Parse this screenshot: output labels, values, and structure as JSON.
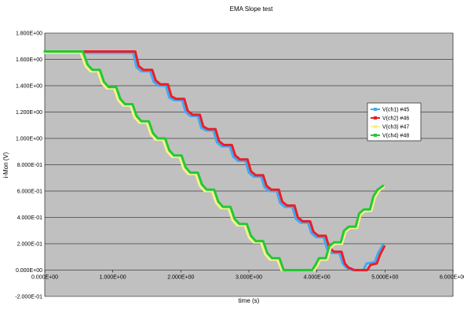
{
  "chart_data": {
    "type": "line",
    "title": "EMA Slope test",
    "xlabel": "time (s)",
    "ylabel": "i-Mon (V)",
    "xlim": [
      0,
      6
    ],
    "ylim": [
      -0.2,
      1.8
    ],
    "x_ticks": [
      {
        "value": 0,
        "label": "0.000E+00"
      },
      {
        "value": 1,
        "label": "1.000E+00"
      },
      {
        "value": 2,
        "label": "2.000E+00"
      },
      {
        "value": 3,
        "label": "3.000E+00"
      },
      {
        "value": 4,
        "label": "4.000E+00"
      },
      {
        "value": 5,
        "label": "5.000E+00"
      },
      {
        "value": 6,
        "label": "6.000E+00"
      }
    ],
    "y_ticks": [
      {
        "value": 1.8,
        "label": "1.800E+00"
      },
      {
        "value": 1.6,
        "label": "1.600E+00"
      },
      {
        "value": 1.4,
        "label": "1.400E+00"
      },
      {
        "value": 1.2,
        "label": "1.200E+00"
      },
      {
        "value": 1.0,
        "label": "1.000E+00"
      },
      {
        "value": 0.8,
        "label": "8.000E-01"
      },
      {
        "value": 0.6,
        "label": "6.000E-01"
      },
      {
        "value": 0.4,
        "label": "4.000E-01"
      },
      {
        "value": 0.2,
        "label": "2.000E-01"
      },
      {
        "value": 0.0,
        "label": "0.000E+00"
      },
      {
        "value": -0.2,
        "label": "-2.000E-01"
      }
    ],
    "grid": "horizontal",
    "legend_position": "right",
    "series": [
      {
        "name": "V(ch1) #45",
        "color": "#3fa9f5",
        "points": [
          [
            0,
            1.65
          ],
          [
            1.3,
            1.65
          ],
          [
            1.35,
            1.54
          ],
          [
            1.42,
            1.51
          ],
          [
            1.55,
            1.51
          ],
          [
            1.6,
            1.43
          ],
          [
            1.67,
            1.4
          ],
          [
            1.78,
            1.4
          ],
          [
            1.83,
            1.31
          ],
          [
            1.9,
            1.29
          ],
          [
            2.02,
            1.29
          ],
          [
            2.07,
            1.2
          ],
          [
            2.14,
            1.17
          ],
          [
            2.25,
            1.17
          ],
          [
            2.3,
            1.08
          ],
          [
            2.37,
            1.06
          ],
          [
            2.48,
            1.06
          ],
          [
            2.53,
            0.97
          ],
          [
            2.6,
            0.94
          ],
          [
            2.72,
            0.94
          ],
          [
            2.77,
            0.86
          ],
          [
            2.84,
            0.83
          ],
          [
            2.95,
            0.83
          ],
          [
            3.0,
            0.74
          ],
          [
            3.07,
            0.71
          ],
          [
            3.18,
            0.71
          ],
          [
            3.23,
            0.63
          ],
          [
            3.3,
            0.6
          ],
          [
            3.41,
            0.6
          ],
          [
            3.46,
            0.51
          ],
          [
            3.53,
            0.48
          ],
          [
            3.64,
            0.48
          ],
          [
            3.69,
            0.39
          ],
          [
            3.76,
            0.36
          ],
          [
            3.87,
            0.36
          ],
          [
            3.92,
            0.28
          ],
          [
            3.99,
            0.25
          ],
          [
            4.1,
            0.25
          ],
          [
            4.15,
            0.16
          ],
          [
            4.22,
            0.13
          ],
          [
            4.33,
            0.13
          ],
          [
            4.38,
            0.05
          ],
          [
            4.43,
            0.02
          ],
          [
            4.52,
            0.0
          ],
          [
            4.68,
            0.0
          ],
          [
            4.73,
            0.05
          ],
          [
            4.85,
            0.06
          ],
          [
            4.9,
            0.13
          ],
          [
            4.97,
            0.19
          ]
        ]
      },
      {
        "name": "V(ch2) #46",
        "color": "#ee1c24",
        "points": [
          [
            0,
            1.66
          ],
          [
            1.33,
            1.66
          ],
          [
            1.38,
            1.55
          ],
          [
            1.45,
            1.52
          ],
          [
            1.58,
            1.52
          ],
          [
            1.63,
            1.44
          ],
          [
            1.7,
            1.41
          ],
          [
            1.81,
            1.41
          ],
          [
            1.86,
            1.32
          ],
          [
            1.93,
            1.3
          ],
          [
            2.05,
            1.3
          ],
          [
            2.1,
            1.21
          ],
          [
            2.17,
            1.18
          ],
          [
            2.28,
            1.18
          ],
          [
            2.33,
            1.09
          ],
          [
            2.4,
            1.07
          ],
          [
            2.51,
            1.07
          ],
          [
            2.56,
            0.98
          ],
          [
            2.63,
            0.95
          ],
          [
            2.75,
            0.95
          ],
          [
            2.8,
            0.87
          ],
          [
            2.87,
            0.84
          ],
          [
            2.98,
            0.84
          ],
          [
            3.03,
            0.75
          ],
          [
            3.1,
            0.72
          ],
          [
            3.21,
            0.72
          ],
          [
            3.26,
            0.64
          ],
          [
            3.33,
            0.61
          ],
          [
            3.44,
            0.61
          ],
          [
            3.49,
            0.52
          ],
          [
            3.56,
            0.49
          ],
          [
            3.67,
            0.49
          ],
          [
            3.72,
            0.4
          ],
          [
            3.79,
            0.37
          ],
          [
            3.9,
            0.37
          ],
          [
            3.95,
            0.29
          ],
          [
            4.02,
            0.26
          ],
          [
            4.13,
            0.26
          ],
          [
            4.18,
            0.17
          ],
          [
            4.25,
            0.14
          ],
          [
            4.36,
            0.14
          ],
          [
            4.41,
            0.05
          ],
          [
            4.46,
            0.02
          ],
          [
            4.55,
            0.0
          ],
          [
            4.74,
            0.0
          ],
          [
            4.79,
            0.04
          ],
          [
            4.88,
            0.05
          ],
          [
            4.93,
            0.12
          ],
          [
            4.99,
            0.18
          ]
        ]
      },
      {
        "name": "V(ch3) #47",
        "color": "#f7f28a",
        "points": [
          [
            0,
            1.65
          ],
          [
            0.53,
            1.65
          ],
          [
            0.6,
            1.55
          ],
          [
            0.67,
            1.51
          ],
          [
            0.78,
            1.51
          ],
          [
            0.84,
            1.42
          ],
          [
            0.91,
            1.38
          ],
          [
            1.02,
            1.38
          ],
          [
            1.08,
            1.29
          ],
          [
            1.15,
            1.25
          ],
          [
            1.26,
            1.25
          ],
          [
            1.32,
            1.16
          ],
          [
            1.39,
            1.12
          ],
          [
            1.5,
            1.12
          ],
          [
            1.56,
            1.03
          ],
          [
            1.63,
            0.99
          ],
          [
            1.74,
            0.99
          ],
          [
            1.8,
            0.9
          ],
          [
            1.87,
            0.86
          ],
          [
            1.98,
            0.86
          ],
          [
            2.04,
            0.77
          ],
          [
            2.11,
            0.73
          ],
          [
            2.22,
            0.73
          ],
          [
            2.28,
            0.64
          ],
          [
            2.35,
            0.6
          ],
          [
            2.46,
            0.6
          ],
          [
            2.52,
            0.51
          ],
          [
            2.59,
            0.47
          ],
          [
            2.7,
            0.47
          ],
          [
            2.76,
            0.38
          ],
          [
            2.83,
            0.34
          ],
          [
            2.94,
            0.34
          ],
          [
            3.0,
            0.25
          ],
          [
            3.07,
            0.21
          ],
          [
            3.18,
            0.21
          ],
          [
            3.24,
            0.12
          ],
          [
            3.31,
            0.08
          ],
          [
            3.42,
            0.08
          ],
          [
            3.48,
            0.0
          ],
          [
            3.96,
            0.0
          ],
          [
            4.0,
            0.03
          ],
          [
            4.05,
            0.08
          ],
          [
            4.15,
            0.08
          ],
          [
            4.2,
            0.17
          ],
          [
            4.27,
            0.2
          ],
          [
            4.37,
            0.2
          ],
          [
            4.42,
            0.29
          ],
          [
            4.49,
            0.32
          ],
          [
            4.59,
            0.32
          ],
          [
            4.64,
            0.42
          ],
          [
            4.71,
            0.45
          ],
          [
            4.8,
            0.45
          ],
          [
            4.85,
            0.55
          ],
          [
            4.91,
            0.6
          ],
          [
            4.98,
            0.63
          ]
        ]
      },
      {
        "name": "V(ch4) #48",
        "color": "#22c935",
        "points": [
          [
            0,
            1.66
          ],
          [
            0.56,
            1.66
          ],
          [
            0.63,
            1.56
          ],
          [
            0.7,
            1.52
          ],
          [
            0.81,
            1.52
          ],
          [
            0.87,
            1.43
          ],
          [
            0.94,
            1.39
          ],
          [
            1.05,
            1.39
          ],
          [
            1.11,
            1.3
          ],
          [
            1.18,
            1.26
          ],
          [
            1.29,
            1.26
          ],
          [
            1.35,
            1.17
          ],
          [
            1.42,
            1.13
          ],
          [
            1.53,
            1.13
          ],
          [
            1.59,
            1.04
          ],
          [
            1.66,
            1.0
          ],
          [
            1.77,
            1.0
          ],
          [
            1.83,
            0.91
          ],
          [
            1.9,
            0.87
          ],
          [
            2.01,
            0.87
          ],
          [
            2.07,
            0.78
          ],
          [
            2.14,
            0.74
          ],
          [
            2.25,
            0.74
          ],
          [
            2.31,
            0.65
          ],
          [
            2.38,
            0.61
          ],
          [
            2.49,
            0.61
          ],
          [
            2.55,
            0.52
          ],
          [
            2.62,
            0.48
          ],
          [
            2.73,
            0.48
          ],
          [
            2.79,
            0.39
          ],
          [
            2.86,
            0.35
          ],
          [
            2.97,
            0.35
          ],
          [
            3.03,
            0.26
          ],
          [
            3.1,
            0.22
          ],
          [
            3.21,
            0.22
          ],
          [
            3.27,
            0.13
          ],
          [
            3.34,
            0.09
          ],
          [
            3.45,
            0.09
          ],
          [
            3.51,
            0.0
          ],
          [
            3.93,
            0.0
          ],
          [
            3.98,
            0.04
          ],
          [
            4.03,
            0.09
          ],
          [
            4.13,
            0.09
          ],
          [
            4.18,
            0.18
          ],
          [
            4.25,
            0.21
          ],
          [
            4.35,
            0.21
          ],
          [
            4.4,
            0.3
          ],
          [
            4.47,
            0.33
          ],
          [
            4.57,
            0.33
          ],
          [
            4.62,
            0.43
          ],
          [
            4.69,
            0.46
          ],
          [
            4.78,
            0.46
          ],
          [
            4.83,
            0.56
          ],
          [
            4.89,
            0.61
          ],
          [
            4.97,
            0.64
          ]
        ]
      }
    ]
  }
}
